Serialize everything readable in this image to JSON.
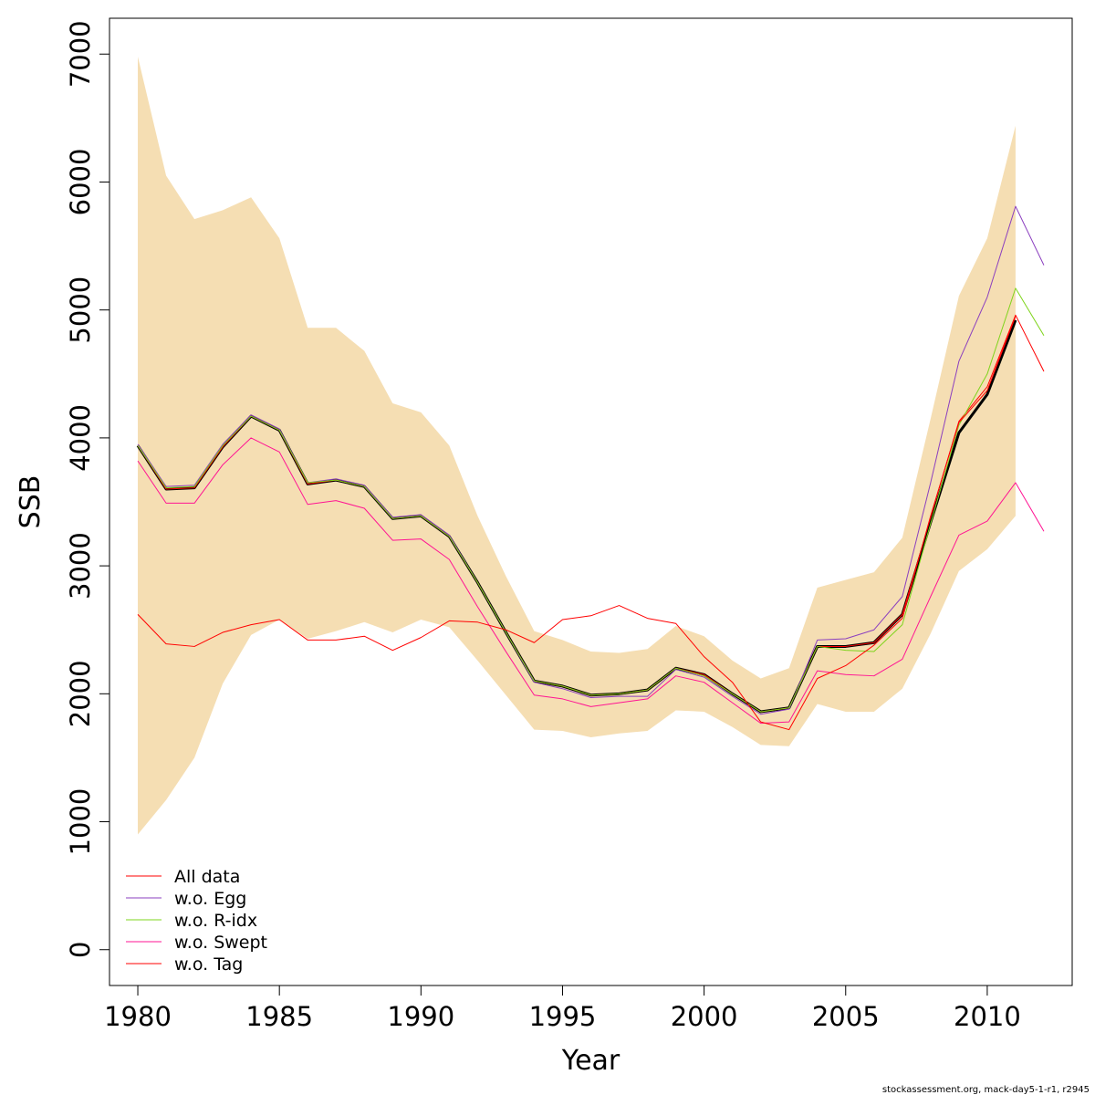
{
  "chart_data": {
    "type": "line",
    "title": "",
    "xlabel": "Year",
    "ylabel": "SSB",
    "xlim": [
      1979,
      2013
    ],
    "ylim": [
      -280,
      7280
    ],
    "xticks": [
      1980,
      1985,
      1990,
      1995,
      2000,
      2005,
      2010
    ],
    "yticks": [
      0,
      1000,
      2000,
      3000,
      4000,
      5000,
      6000,
      7000
    ],
    "grid": false,
    "legend_position": "bottom-left",
    "band": {
      "color": "#F5DEB3",
      "x": [
        1980,
        1981,
        1982,
        1983,
        1984,
        1985,
        1986,
        1987,
        1988,
        1989,
        1990,
        1991,
        1992,
        1993,
        1994,
        1995,
        1996,
        1997,
        1998,
        1999,
        2000,
        2001,
        2002,
        2003,
        2004,
        2005,
        2006,
        2007,
        2008,
        2009,
        2010,
        2011
      ],
      "lower": [
        900,
        1170,
        1500,
        2080,
        2460,
        2580,
        2430,
        2490,
        2560,
        2480,
        2580,
        2520,
        2260,
        1990,
        1720,
        1710,
        1660,
        1690,
        1710,
        1870,
        1860,
        1740,
        1600,
        1590,
        1920,
        1860,
        1860,
        2040,
        2470,
        2960,
        3130,
        3390
      ],
      "upper": [
        6980,
        6050,
        5710,
        5780,
        5880,
        5560,
        4860,
        4860,
        4680,
        4270,
        4200,
        3940,
        3390,
        2920,
        2490,
        2420,
        2330,
        2320,
        2350,
        2530,
        2450,
        2260,
        2120,
        2200,
        2830,
        2890,
        2950,
        3220,
        4150,
        5110,
        5560,
        6440
      ]
    },
    "main": {
      "name": "",
      "color": "#000000",
      "x": [
        1980,
        1981,
        1982,
        1983,
        1984,
        1985,
        1986,
        1987,
        1988,
        1989,
        1990,
        1991,
        1992,
        1993,
        1994,
        1995,
        1996,
        1997,
        1998,
        1999,
        2000,
        2001,
        2002,
        2003,
        2004,
        2005,
        2006,
        2007,
        2008,
        2009,
        2010,
        2011
      ],
      "values": [
        3940,
        3600,
        3610,
        3930,
        4170,
        4060,
        3640,
        3670,
        3620,
        3370,
        3390,
        3230,
        2870,
        2480,
        2100,
        2060,
        1990,
        2000,
        2030,
        2200,
        2150,
        2000,
        1860,
        1890,
        2370,
        2370,
        2400,
        2620,
        3340,
        4040,
        4340,
        4920
      ]
    },
    "series": [
      {
        "name": "All data",
        "color": "#FF0000",
        "x": [
          1980,
          1981,
          1982,
          1983,
          1984,
          1985,
          1986,
          1987,
          1988,
          1989,
          1990,
          1991,
          1992,
          1993,
          1994,
          1995,
          1996,
          1997,
          1998,
          1999,
          2000,
          2001,
          2002,
          2003,
          2004,
          2005,
          2006,
          2007,
          2008,
          2009,
          2010,
          2011,
          2012
        ],
        "values": [
          3940,
          3600,
          3610,
          3930,
          4170,
          4060,
          3640,
          3670,
          3620,
          3370,
          3390,
          3230,
          2870,
          2480,
          2100,
          2060,
          1990,
          2000,
          2030,
          2200,
          2150,
          2000,
          1860,
          1890,
          2370,
          2370,
          2400,
          2620,
          3380,
          4130,
          4400,
          4960,
          4520
        ]
      },
      {
        "name": "w.o. Egg",
        "color": "#8B3FBF",
        "x": [
          1980,
          1981,
          1982,
          1983,
          1984,
          1985,
          1986,
          1987,
          1988,
          1989,
          1990,
          1991,
          1992,
          1993,
          1994,
          1995,
          1996,
          1997,
          1998,
          1999,
          2000,
          2001,
          2002,
          2003,
          2004,
          2005,
          2006,
          2007,
          2008,
          2009,
          2010,
          2011,
          2012
        ],
        "values": [
          3950,
          3620,
          3630,
          3950,
          4180,
          4070,
          3650,
          3680,
          3630,
          3380,
          3400,
          3240,
          2870,
          2480,
          2090,
          2040,
          1970,
          1980,
          1980,
          2190,
          2130,
          1980,
          1840,
          1880,
          2420,
          2430,
          2500,
          2760,
          3650,
          4600,
          5100,
          5810,
          5350
        ]
      },
      {
        "name": "w.o. R-idx",
        "color": "#7FD41C",
        "x": [
          1980,
          1981,
          1982,
          1983,
          1984,
          1985,
          1986,
          1987,
          1988,
          1989,
          1990,
          1991,
          1992,
          1993,
          1994,
          1995,
          1996,
          1997,
          1998,
          1999,
          2000,
          2001,
          2002,
          2003,
          2004,
          2005,
          2006,
          2007,
          2008,
          2009,
          2010,
          2011,
          2012
        ],
        "values": [
          3940,
          3610,
          3620,
          3940,
          4170,
          4060,
          3650,
          3670,
          3620,
          3370,
          3390,
          3230,
          2870,
          2480,
          2100,
          2060,
          1990,
          2000,
          2030,
          2200,
          2140,
          2000,
          1860,
          1890,
          2370,
          2340,
          2330,
          2540,
          3330,
          4100,
          4500,
          5170,
          4800
        ]
      },
      {
        "name": "w.o. Swept",
        "color": "#FF1493",
        "x": [
          1980,
          1981,
          1982,
          1983,
          1984,
          1985,
          1986,
          1987,
          1988,
          1989,
          1990,
          1991,
          1992,
          1993,
          1994,
          1995,
          1996,
          1997,
          1998,
          1999,
          2000,
          2001,
          2002,
          2003,
          2004,
          2005,
          2006,
          2007,
          2008,
          2009,
          2010,
          2011,
          2012
        ],
        "values": [
          3820,
          3490,
          3490,
          3790,
          4000,
          3890,
          3480,
          3510,
          3450,
          3200,
          3210,
          3050,
          2680,
          2330,
          1990,
          1960,
          1900,
          1930,
          1960,
          2140,
          2090,
          1930,
          1770,
          1780,
          2180,
          2150,
          2140,
          2270,
          2760,
          3240,
          3350,
          3650,
          3270
        ]
      },
      {
        "name": "w.o. Tag",
        "color": "#FF0000",
        "x": [
          1980,
          1981,
          1982,
          1983,
          1984,
          1985,
          1986,
          1987,
          1988,
          1989,
          1990,
          1991,
          1992,
          1993,
          1994,
          1995,
          1996,
          1997,
          1998,
          1999,
          2000,
          2001,
          2002,
          2003,
          2004,
          2005,
          2006,
          2007,
          2008,
          2009,
          2010,
          2011
        ],
        "values": [
          2620,
          2390,
          2370,
          2480,
          2540,
          2580,
          2420,
          2420,
          2450,
          2340,
          2440,
          2570,
          2560,
          2500,
          2400,
          2580,
          2610,
          2690,
          2590,
          2550,
          2290,
          2090,
          1780,
          1720,
          2120,
          2220,
          2380,
          2590,
          3390,
          4120,
          4370,
          4950
        ]
      }
    ],
    "legend": [
      "All data",
      "w.o. Egg",
      "w.o. R-idx",
      "w.o. Swept",
      "w.o. Tag"
    ],
    "footer": "stockassessment.org, mack-day5-1-r1, r2945"
  }
}
